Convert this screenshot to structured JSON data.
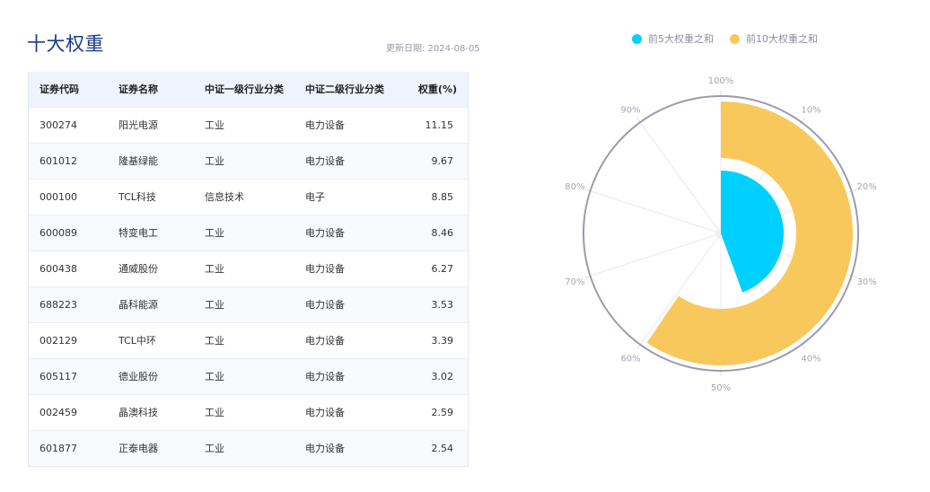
{
  "header": {
    "title": "十大权重",
    "update_label": "更新日期: 2024-08-05"
  },
  "table": {
    "columns": [
      "证券代码",
      "证券名称",
      "中证一级行业分类",
      "中证二级行业分类",
      "权重(%)"
    ],
    "rows": [
      {
        "code": "300274",
        "name": "阳光电源",
        "level1": "工业",
        "level2": "电力设备",
        "weight": "11.15"
      },
      {
        "code": "601012",
        "name": "隆基绿能",
        "level1": "工业",
        "level2": "电力设备",
        "weight": "9.67"
      },
      {
        "code": "000100",
        "name": "TCL科技",
        "level1": "信息技术",
        "level2": "电子",
        "weight": "8.85"
      },
      {
        "code": "600089",
        "name": "特变电工",
        "level1": "工业",
        "level2": "电力设备",
        "weight": "8.46"
      },
      {
        "code": "600438",
        "name": "通威股份",
        "level1": "工业",
        "level2": "电力设备",
        "weight": "6.27"
      },
      {
        "code": "688223",
        "name": "晶科能源",
        "level1": "工业",
        "level2": "电力设备",
        "weight": "3.53"
      },
      {
        "code": "002129",
        "name": "TCL中环",
        "level1": "工业",
        "level2": "电力设备",
        "weight": "3.39"
      },
      {
        "code": "605117",
        "name": "德业股份",
        "level1": "工业",
        "level2": "电力设备",
        "weight": "3.02"
      },
      {
        "code": "002459",
        "name": "晶澳科技",
        "level1": "工业",
        "level2": "电力设备",
        "weight": "2.59"
      },
      {
        "code": "601877",
        "name": "正泰电器",
        "level1": "工业",
        "level2": "电力设备",
        "weight": "2.54"
      }
    ]
  },
  "legend": {
    "items": [
      {
        "label": "前5大权重之和",
        "color": "#00d0ff"
      },
      {
        "label": "前10大权重之和",
        "color": "#f9c85c"
      }
    ]
  },
  "chart_data": {
    "type": "polar-bar",
    "title": "",
    "angle_axis": {
      "min": 0,
      "max": 100,
      "tick_labels": [
        "100%",
        "10%",
        "20%",
        "30%",
        "40%",
        "50%",
        "60%",
        "70%",
        "80%",
        "90%"
      ]
    },
    "series": [
      {
        "name": "前5大权重之和",
        "value": 44.4,
        "color": "#00d0ff"
      },
      {
        "name": "前10大权重之和",
        "value": 59.47,
        "color": "#f9c85c"
      }
    ],
    "legend_position": "top"
  }
}
